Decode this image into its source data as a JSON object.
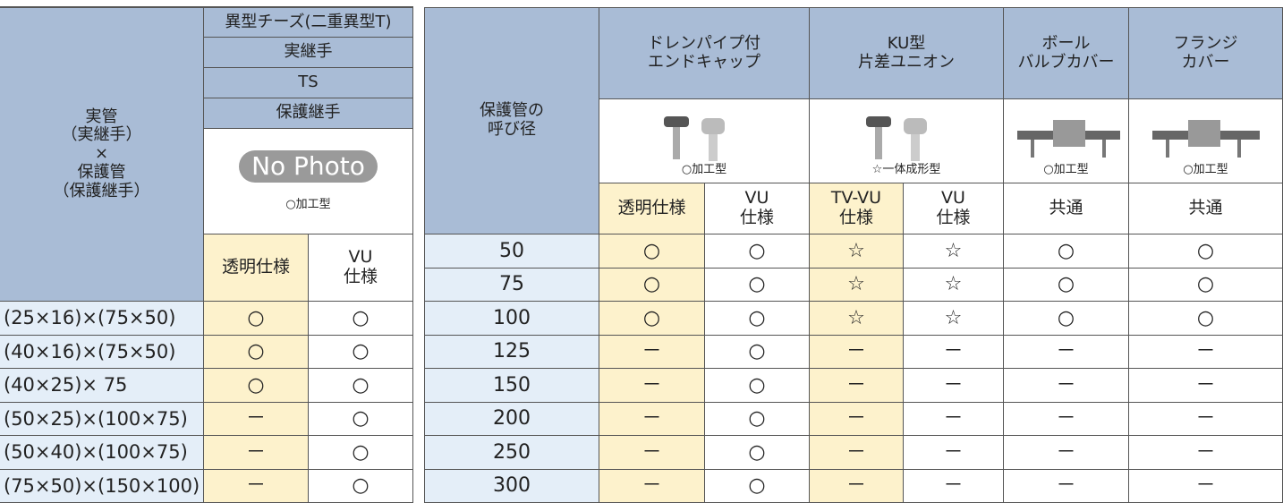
{
  "left_table": {
    "header_lines": [
      "実管",
      "（実継手）",
      "×",
      "保護管",
      "（保護継手）"
    ],
    "product_rows": [
      "異型チーズ(二重異型T)",
      "実継手",
      "TS",
      "保護継手"
    ],
    "photo_text": "No Photo",
    "photo_note": "○加工型",
    "specs": [
      [
        "透明仕様"
      ],
      [
        "VU",
        "仕様"
      ]
    ],
    "rows": [
      [
        "(25×16)×(75×50)",
        "○",
        "○"
      ],
      [
        "(40×16)×(75×50)",
        "○",
        "○"
      ],
      [
        "(40×25)× 75",
        "○",
        "○"
      ],
      [
        "(50×25)×(100×75)",
        "－",
        "○"
      ],
      [
        "(50×40)×(100×75)",
        "－",
        "○"
      ],
      [
        "(75×50)×(150×100)",
        "－",
        "○"
      ]
    ]
  },
  "right_table": {
    "corner_lines": [
      "保護管の",
      "呼び径"
    ],
    "products": [
      {
        "name": [
          "ドレンパイプ付",
          "エンドキャップ"
        ],
        "note": "○加工型",
        "specs": [
          [
            "透明仕様"
          ],
          [
            "VU",
            "仕様"
          ]
        ]
      },
      {
        "name": [
          "KU型",
          "片差ユニオン"
        ],
        "note": "☆一体成形型",
        "specs": [
          [
            "TV-VU",
            "仕様"
          ],
          [
            "VU",
            "仕様"
          ]
        ]
      },
      {
        "name": [
          "ボール",
          "バルブカバー"
        ],
        "note": "○加工型",
        "specs": [
          [
            "共通"
          ]
        ]
      },
      {
        "name": [
          "フランジ",
          "カバー"
        ],
        "note": "○加工型",
        "specs": [
          [
            "共通"
          ]
        ]
      }
    ],
    "rows": [
      [
        "50",
        "○",
        "○",
        "☆",
        "☆",
        "○",
        "○"
      ],
      [
        "75",
        "○",
        "○",
        "☆",
        "☆",
        "○",
        "○"
      ],
      [
        "100",
        "○",
        "○",
        "☆",
        "☆",
        "○",
        "○"
      ],
      [
        "125",
        "－",
        "○",
        "－",
        "－",
        "－",
        "－"
      ],
      [
        "150",
        "－",
        "○",
        "－",
        "－",
        "－",
        "－"
      ],
      [
        "200",
        "－",
        "○",
        "－",
        "－",
        "－",
        "－"
      ],
      [
        "250",
        "－",
        "○",
        "－",
        "－",
        "－",
        "－"
      ],
      [
        "300",
        "－",
        "○",
        "－",
        "－",
        "－",
        "－"
      ]
    ]
  }
}
